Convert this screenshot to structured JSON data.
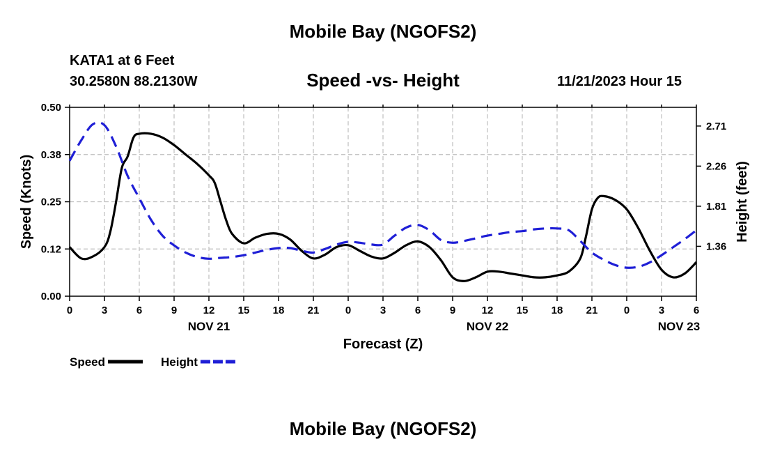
{
  "header": {
    "title": "Mobile Bay (NGOFS2)",
    "station": "KATA1 at 6 Feet",
    "coords": "30.2580N  88.2130W",
    "subtitle": "Speed -vs- Height",
    "datetime": "11/21/2023 Hour 15"
  },
  "footer": {
    "title": "Mobile Bay (NGOFS2)"
  },
  "chart_data": {
    "type": "line",
    "xlabel": "Forecast (Z)",
    "ylabel": "Speed (Knots)",
    "y2label": "Height (feet)",
    "x_range": [
      0,
      54
    ],
    "ylim": [
      0,
      0.5
    ],
    "y2lim": [
      0.8,
      2.92
    ],
    "x_ticks": [
      0,
      3,
      6,
      9,
      12,
      15,
      18,
      21,
      24,
      27,
      30,
      33,
      36,
      39,
      42,
      45,
      48,
      51,
      54
    ],
    "x_tick_labels": [
      "0",
      "3",
      "6",
      "9",
      "12",
      "15",
      "18",
      "21",
      "0",
      "3",
      "6",
      "9",
      "12",
      "15",
      "18",
      "21",
      "0",
      "3",
      "6"
    ],
    "y_ticks": [
      0,
      0.125,
      0.25,
      0.375,
      0.5
    ],
    "y_tick_labels": [
      "0.00",
      "0.12",
      "0.25",
      "0.38",
      "0.50"
    ],
    "y2_ticks": [
      1.36,
      1.81,
      2.26,
      2.71
    ],
    "y2_tick_labels": [
      "1.36",
      "1.81",
      "2.26",
      "2.71"
    ],
    "day_labels": [
      {
        "x": 12,
        "label": "NOV 21"
      },
      {
        "x": 36,
        "label": "NOV 22"
      },
      {
        "x": 52.5,
        "label": "NOV 23"
      }
    ],
    "grid": true,
    "series": [
      {
        "name": "Speed",
        "axis": "left",
        "color": "#000000",
        "style": "solid",
        "points": [
          [
            0,
            0.13
          ],
          [
            1,
            0.1
          ],
          [
            2,
            0.105
          ],
          [
            3,
            0.13
          ],
          [
            3.5,
            0.17
          ],
          [
            4,
            0.25
          ],
          [
            4.5,
            0.34
          ],
          [
            5,
            0.37
          ],
          [
            5.5,
            0.42
          ],
          [
            6,
            0.43
          ],
          [
            7,
            0.43
          ],
          [
            8,
            0.42
          ],
          [
            9,
            0.4
          ],
          [
            10,
            0.375
          ],
          [
            11,
            0.35
          ],
          [
            12,
            0.32
          ],
          [
            12.5,
            0.3
          ],
          [
            13,
            0.25
          ],
          [
            13.5,
            0.2
          ],
          [
            14,
            0.165
          ],
          [
            15,
            0.14
          ],
          [
            16,
            0.155
          ],
          [
            17,
            0.165
          ],
          [
            18,
            0.165
          ],
          [
            19,
            0.15
          ],
          [
            20,
            0.12
          ],
          [
            21,
            0.1
          ],
          [
            22,
            0.11
          ],
          [
            23,
            0.13
          ],
          [
            24,
            0.135
          ],
          [
            25,
            0.12
          ],
          [
            26,
            0.105
          ],
          [
            27,
            0.1
          ],
          [
            28,
            0.115
          ],
          [
            29,
            0.135
          ],
          [
            30,
            0.145
          ],
          [
            31,
            0.13
          ],
          [
            32,
            0.095
          ],
          [
            33,
            0.05
          ],
          [
            34,
            0.04
          ],
          [
            35,
            0.05
          ],
          [
            36,
            0.065
          ],
          [
            37,
            0.065
          ],
          [
            38,
            0.06
          ],
          [
            39,
            0.055
          ],
          [
            40,
            0.05
          ],
          [
            41,
            0.05
          ],
          [
            42,
            0.055
          ],
          [
            43,
            0.065
          ],
          [
            44,
            0.1
          ],
          [
            44.5,
            0.16
          ],
          [
            45,
            0.23
          ],
          [
            45.5,
            0.26
          ],
          [
            46,
            0.265
          ],
          [
            47,
            0.255
          ],
          [
            48,
            0.23
          ],
          [
            49,
            0.18
          ],
          [
            50,
            0.12
          ],
          [
            51,
            0.07
          ],
          [
            52,
            0.05
          ],
          [
            53,
            0.06
          ],
          [
            54,
            0.09
          ]
        ]
      },
      {
        "name": "Height",
        "axis": "right",
        "color": "#1f1fd6",
        "style": "dashed",
        "points": [
          [
            0,
            2.32
          ],
          [
            1,
            2.55
          ],
          [
            2,
            2.73
          ],
          [
            3,
            2.72
          ],
          [
            4,
            2.48
          ],
          [
            5,
            2.15
          ],
          [
            6,
            1.9
          ],
          [
            7,
            1.66
          ],
          [
            8,
            1.48
          ],
          [
            9,
            1.37
          ],
          [
            10,
            1.29
          ],
          [
            11,
            1.24
          ],
          [
            12,
            1.22
          ],
          [
            13,
            1.23
          ],
          [
            14,
            1.24
          ],
          [
            15,
            1.26
          ],
          [
            16,
            1.29
          ],
          [
            17,
            1.32
          ],
          [
            18,
            1.34
          ],
          [
            19,
            1.34
          ],
          [
            20,
            1.31
          ],
          [
            21,
            1.29
          ],
          [
            22,
            1.33
          ],
          [
            23,
            1.38
          ],
          [
            24,
            1.41
          ],
          [
            25,
            1.4
          ],
          [
            26,
            1.38
          ],
          [
            27,
            1.38
          ],
          [
            28,
            1.48
          ],
          [
            29,
            1.57
          ],
          [
            30,
            1.6
          ],
          [
            31,
            1.54
          ],
          [
            32,
            1.43
          ],
          [
            33,
            1.4
          ],
          [
            34,
            1.42
          ],
          [
            35,
            1.45
          ],
          [
            36,
            1.48
          ],
          [
            37,
            1.5
          ],
          [
            38,
            1.52
          ],
          [
            39,
            1.53
          ],
          [
            40,
            1.55
          ],
          [
            41,
            1.56
          ],
          [
            42,
            1.56
          ],
          [
            43,
            1.54
          ],
          [
            44,
            1.42
          ],
          [
            45,
            1.29
          ],
          [
            46,
            1.21
          ],
          [
            47,
            1.15
          ],
          [
            48,
            1.12
          ],
          [
            49,
            1.13
          ],
          [
            50,
            1.18
          ],
          [
            51,
            1.26
          ],
          [
            52,
            1.35
          ],
          [
            53,
            1.44
          ],
          [
            54,
            1.54
          ]
        ]
      }
    ],
    "legend": [
      {
        "label": "Speed",
        "color": "#000000",
        "style": "solid"
      },
      {
        "label": "Height",
        "color": "#1f1fd6",
        "style": "dashed"
      }
    ]
  }
}
